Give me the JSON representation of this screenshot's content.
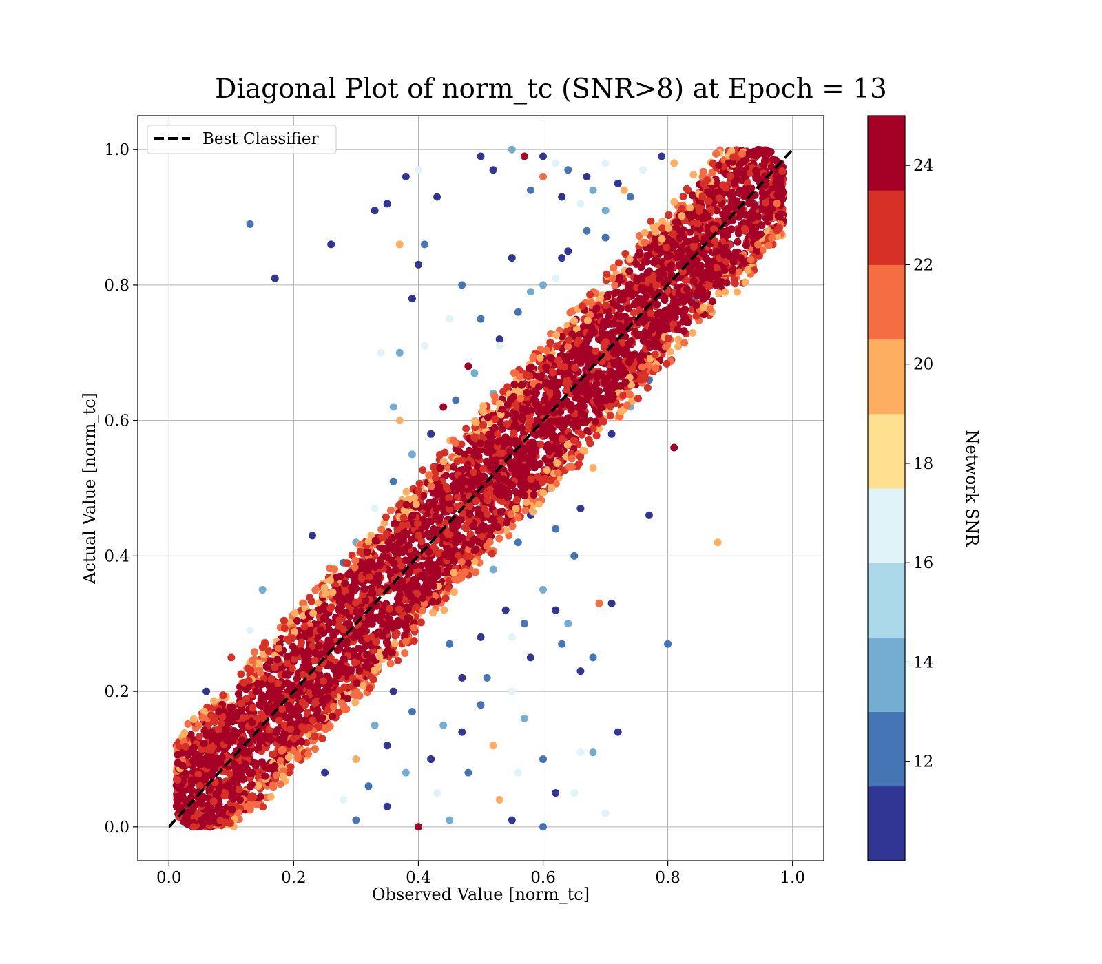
{
  "chart_data": {
    "type": "scatter",
    "title": "Diagonal Plot of norm_tc (SNR>8) at Epoch = 13",
    "xlabel": "Observed Value [norm_tc]",
    "ylabel": "Actual Value [norm_tc]",
    "xlim": [
      -0.05,
      1.05
    ],
    "ylim": [
      -0.05,
      1.05
    ],
    "xticks": [
      "0.0",
      "0.2",
      "0.4",
      "0.6",
      "0.8",
      "1.0"
    ],
    "yticks": [
      "0.0",
      "0.2",
      "0.4",
      "0.6",
      "0.8",
      "1.0"
    ],
    "grid": true,
    "legend": {
      "position": "upper-left",
      "entries": [
        "Best Classifier"
      ]
    },
    "reference_line": {
      "name": "Best Classifier",
      "style": "dashed",
      "color": "#000000",
      "x": [
        0,
        1
      ],
      "y": [
        0,
        1
      ]
    },
    "colorbar": {
      "label": "Network SNR",
      "vmin": 10,
      "vmax": 25,
      "ticks": [
        "12",
        "14",
        "16",
        "18",
        "20",
        "22",
        "24"
      ],
      "tick_values": [
        12,
        14,
        16,
        18,
        20,
        22,
        24
      ],
      "colors": [
        "#313695",
        "#4575b4",
        "#74add1",
        "#abd9e9",
        "#e0f3f8",
        "#fee090",
        "#fdae61",
        "#f46d43",
        "#d73027",
        "#a50026"
      ]
    },
    "points": [
      [
        0.13,
        0.89,
        12
      ],
      [
        0.17,
        0.81,
        10.5
      ],
      [
        0.26,
        0.86,
        10.5
      ],
      [
        0.33,
        0.91,
        10.5
      ],
      [
        0.35,
        0.92,
        10.5
      ],
      [
        0.37,
        0.86,
        19
      ],
      [
        0.38,
        0.96,
        11
      ],
      [
        0.4,
        0.97,
        16
      ],
      [
        0.41,
        0.86,
        12
      ],
      [
        0.43,
        0.93,
        10.5
      ],
      [
        0.39,
        0.78,
        10.5
      ],
      [
        0.4,
        0.83,
        10.5
      ],
      [
        0.34,
        0.7,
        16
      ],
      [
        0.37,
        0.7,
        14
      ],
      [
        0.41,
        0.71,
        17
      ],
      [
        0.36,
        0.62,
        14
      ],
      [
        0.37,
        0.6,
        19
      ],
      [
        0.81,
        0.56,
        24.5
      ],
      [
        0.88,
        0.42,
        19
      ],
      [
        0.77,
        0.46,
        10.5
      ],
      [
        0.69,
        0.33,
        21
      ],
      [
        0.71,
        0.33,
        10.5
      ],
      [
        0.8,
        0.27,
        12
      ],
      [
        0.72,
        0.14,
        10.5
      ],
      [
        0.7,
        0.02,
        16
      ],
      [
        0.65,
        0.05,
        16
      ],
      [
        0.66,
        0.11,
        16
      ],
      [
        0.68,
        0.11,
        14
      ],
      [
        0.68,
        0.25,
        12
      ],
      [
        0.66,
        0.23,
        10.5
      ],
      [
        0.63,
        0.27,
        12
      ],
      [
        0.62,
        0.32,
        10.5
      ],
      [
        0.65,
        0.4,
        12
      ],
      [
        0.5,
        0.99,
        10.5
      ],
      [
        0.55,
        1.0,
        14
      ],
      [
        0.57,
        0.99,
        24
      ],
      [
        0.6,
        0.99,
        10.5
      ],
      [
        0.62,
        0.98,
        16
      ],
      [
        0.64,
        0.97,
        12
      ],
      [
        0.67,
        0.96,
        10.5
      ],
      [
        0.7,
        0.98,
        16
      ],
      [
        0.13,
        0.29,
        16
      ],
      [
        0.15,
        0.35,
        14
      ],
      [
        0.23,
        0.43,
        10.5
      ],
      [
        0.1,
        0.25,
        22
      ],
      [
        0.06,
        0.2,
        10.5
      ],
      [
        0.4,
        0.0,
        24
      ],
      [
        0.35,
        0.03,
        10.5
      ],
      [
        0.3,
        0.01,
        12
      ],
      [
        0.45,
        0.01,
        14
      ],
      [
        0.55,
        0.01,
        10.5
      ],
      [
        0.6,
        0.0,
        12
      ],
      [
        0.48,
        0.68,
        24.5
      ],
      [
        0.44,
        0.62,
        24.5
      ],
      [
        0.6,
        0.96,
        21
      ],
      [
        0.52,
        0.97,
        10.5
      ],
      [
        0.58,
        0.94,
        12
      ],
      [
        0.63,
        0.93,
        10.5
      ],
      [
        0.66,
        0.92,
        16
      ],
      [
        0.68,
        0.94,
        14
      ],
      [
        0.72,
        0.95,
        10.5
      ],
      [
        0.74,
        0.93,
        12
      ],
      [
        0.76,
        0.97,
        16
      ],
      [
        0.79,
        0.99,
        10.5
      ],
      [
        0.81,
        0.98,
        19
      ],
      [
        0.64,
        0.85,
        10.5
      ],
      [
        0.7,
        0.87,
        12
      ],
      [
        0.55,
        0.84,
        10.5
      ],
      [
        0.58,
        0.79,
        14
      ],
      [
        0.62,
        0.81,
        16
      ],
      [
        0.5,
        0.75,
        12
      ],
      [
        0.53,
        0.72,
        10.5
      ],
      [
        0.47,
        0.8,
        12
      ],
      [
        0.45,
        0.75,
        16
      ],
      [
        0.52,
        0.64,
        14
      ],
      [
        0.54,
        0.32,
        10.5
      ],
      [
        0.57,
        0.3,
        12
      ],
      [
        0.6,
        0.35,
        14
      ],
      [
        0.58,
        0.25,
        10.5
      ],
      [
        0.55,
        0.2,
        16
      ],
      [
        0.5,
        0.18,
        12
      ],
      [
        0.47,
        0.22,
        10.5
      ],
      [
        0.44,
        0.15,
        14
      ],
      [
        0.42,
        0.1,
        10.5
      ],
      [
        0.48,
        0.08,
        12
      ],
      [
        0.52,
        0.12,
        19
      ],
      [
        0.56,
        0.08,
        16
      ],
      [
        0.6,
        0.1,
        12
      ],
      [
        0.62,
        0.05,
        10.5
      ],
      [
        0.38,
        0.08,
        14
      ],
      [
        0.35,
        0.12,
        10.5
      ],
      [
        0.32,
        0.06,
        12
      ],
      [
        0.28,
        0.04,
        16
      ],
      [
        0.25,
        0.08,
        10.5
      ],
      [
        0.45,
        0.27,
        12
      ],
      [
        0.5,
        0.28,
        10.5
      ],
      [
        0.52,
        0.38,
        14
      ],
      [
        0.56,
        0.42,
        12
      ],
      [
        0.58,
        0.46,
        10.5
      ],
      [
        0.61,
        0.5,
        14
      ],
      [
        0.63,
        0.53,
        16
      ],
      [
        0.66,
        0.55,
        12
      ],
      [
        0.68,
        0.53,
        19
      ],
      [
        0.71,
        0.58,
        10.5
      ],
      [
        0.74,
        0.62,
        14
      ],
      [
        0.77,
        0.66,
        12
      ],
      [
        0.79,
        0.7,
        10.5
      ],
      [
        0.82,
        0.74,
        16
      ],
      [
        0.84,
        0.78,
        12
      ],
      [
        0.87,
        0.82,
        14
      ],
      [
        0.9,
        0.86,
        10.5
      ],
      [
        0.93,
        0.88,
        12
      ],
      [
        0.95,
        0.92,
        14
      ],
      [
        0.3,
        0.42,
        14
      ],
      [
        0.28,
        0.39,
        12
      ],
      [
        0.25,
        0.36,
        16
      ],
      [
        0.22,
        0.32,
        10.5
      ],
      [
        0.19,
        0.3,
        14
      ],
      [
        0.16,
        0.26,
        12
      ],
      [
        0.33,
        0.47,
        16
      ],
      [
        0.36,
        0.51,
        12
      ],
      [
        0.39,
        0.55,
        14
      ],
      [
        0.42,
        0.58,
        10.5
      ],
      [
        0.46,
        0.63,
        12
      ],
      [
        0.49,
        0.67,
        14
      ],
      [
        0.53,
        0.71,
        16
      ],
      [
        0.56,
        0.76,
        12
      ],
      [
        0.6,
        0.8,
        14
      ],
      [
        0.63,
        0.84,
        10.5
      ],
      [
        0.67,
        0.88,
        12
      ],
      [
        0.7,
        0.91,
        14
      ],
      [
        0.73,
        0.94,
        19
      ],
      [
        0.53,
        0.04,
        19
      ],
      [
        0.57,
        0.16,
        14
      ],
      [
        0.51,
        0.22,
        12
      ],
      [
        0.43,
        0.05,
        16
      ],
      [
        0.47,
        0.14,
        10.5
      ],
      [
        0.39,
        0.17,
        12
      ],
      [
        0.36,
        0.2,
        10.5
      ],
      [
        0.33,
        0.15,
        14
      ],
      [
        0.3,
        0.1,
        19
      ],
      [
        0.55,
        0.28,
        16
      ],
      [
        0.64,
        0.3,
        14
      ],
      [
        0.66,
        0.47,
        10.5
      ],
      [
        0.62,
        0.44,
        12
      ]
    ]
  }
}
